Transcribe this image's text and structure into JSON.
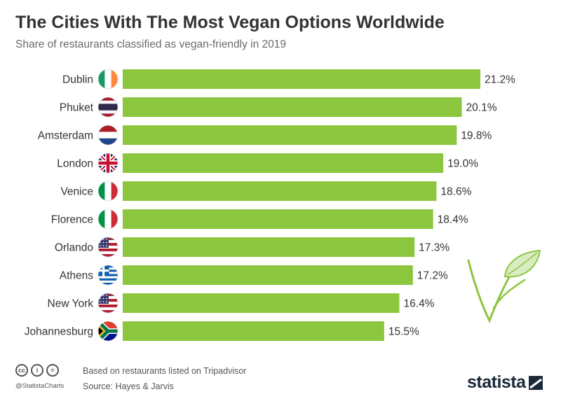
{
  "header": {
    "title": "The Cities With The Most Vegan Options Worldwide",
    "subtitle": "Share of restaurants classified as vegan-friendly in 2019"
  },
  "chart_data": {
    "type": "bar",
    "orientation": "horizontal",
    "title": "The Cities With The Most Vegan Options Worldwide",
    "subtitle": "Share of restaurants classified as vegan-friendly in 2019",
    "unit": "%",
    "categories": [
      "Dublin",
      "Phuket",
      "Amsterdam",
      "London",
      "Venice",
      "Florence",
      "Orlando",
      "Athens",
      "New York",
      "Johannesburg"
    ],
    "values": [
      21.2,
      20.1,
      19.8,
      19.0,
      18.6,
      18.4,
      17.3,
      17.2,
      16.4,
      15.5
    ],
    "value_labels": [
      "21.2%",
      "20.1%",
      "19.8%",
      "19.0%",
      "18.6%",
      "18.4%",
      "17.3%",
      "17.2%",
      "16.4%",
      "15.5%"
    ],
    "flags": [
      "ireland-flag-icon",
      "thailand-flag-icon",
      "netherlands-flag-icon",
      "uk-flag-icon",
      "italy-flag-icon",
      "italy-flag-icon",
      "usa-flag-icon",
      "greece-flag-icon",
      "usa-flag-icon",
      "south-africa-flag-icon"
    ],
    "bar_color": "#8cc63f",
    "xlim": [
      0,
      21.2
    ],
    "grid": false,
    "legend": "none"
  },
  "footer": {
    "cc_icons": [
      "cc",
      "i",
      "="
    ],
    "handle": "@StatistaCharts",
    "note": "Based on restaurants listed on Tripadvisor",
    "source": "Source: Hayes & Jarvis",
    "brand": "statista"
  },
  "decoration": {
    "icon": "vegan-leaf-icon",
    "leaf_color": "#8cc63f"
  }
}
